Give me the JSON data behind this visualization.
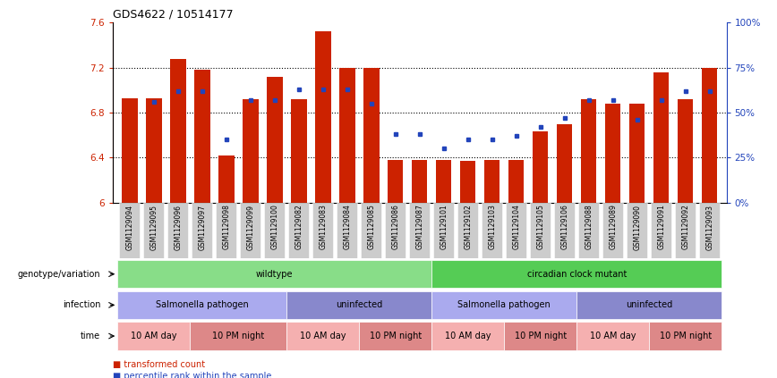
{
  "title": "GDS4622 / 10514177",
  "samples": [
    "GSM1129094",
    "GSM1129095",
    "GSM1129096",
    "GSM1129097",
    "GSM1129098",
    "GSM1129099",
    "GSM1129100",
    "GSM1129082",
    "GSM1129083",
    "GSM1129084",
    "GSM1129085",
    "GSM1129086",
    "GSM1129087",
    "GSM1129101",
    "GSM1129102",
    "GSM1129103",
    "GSM1129104",
    "GSM1129105",
    "GSM1129106",
    "GSM1129088",
    "GSM1129089",
    "GSM1129090",
    "GSM1129091",
    "GSM1129092",
    "GSM1129093"
  ],
  "bar_values": [
    6.93,
    6.93,
    7.28,
    7.18,
    6.42,
    6.92,
    7.12,
    6.92,
    7.52,
    7.2,
    7.2,
    6.38,
    6.38,
    6.38,
    6.37,
    6.38,
    6.38,
    6.63,
    6.7,
    6.92,
    6.88,
    6.88,
    7.16,
    6.92,
    7.2
  ],
  "dot_values": [
    null,
    56,
    62,
    62,
    35,
    57,
    57,
    63,
    63,
    63,
    55,
    38,
    38,
    30,
    35,
    35,
    37,
    42,
    47,
    57,
    57,
    46,
    57,
    62,
    62
  ],
  "ylim_left": [
    6.0,
    7.6
  ],
  "ylim_right": [
    0,
    100
  ],
  "yticks_left": [
    6.0,
    6.4,
    6.8,
    7.2,
    7.6
  ],
  "yticks_right": [
    0,
    25,
    50,
    75,
    100
  ],
  "ytick_labels_right": [
    "0%",
    "25%",
    "50%",
    "75%",
    "100%"
  ],
  "bar_color": "#cc2200",
  "dot_color": "#2244bb",
  "bar_bottom": 6.0,
  "grid_values": [
    6.4,
    6.8,
    7.2
  ],
  "row_genotype_label": "genotype/variation",
  "row_infection_label": "infection",
  "row_time_label": "time",
  "genotype_groups": [
    {
      "label": "wildtype",
      "start": 0,
      "end": 13,
      "color": "#88dd88"
    },
    {
      "label": "circadian clock mutant",
      "start": 13,
      "end": 25,
      "color": "#55cc55"
    }
  ],
  "infection_groups": [
    {
      "label": "Salmonella pathogen",
      "start": 0,
      "end": 7,
      "color": "#aaaaee"
    },
    {
      "label": "uninfected",
      "start": 7,
      "end": 13,
      "color": "#8888cc"
    },
    {
      "label": "Salmonella pathogen",
      "start": 13,
      "end": 19,
      "color": "#aaaaee"
    },
    {
      "label": "uninfected",
      "start": 19,
      "end": 25,
      "color": "#8888cc"
    }
  ],
  "time_groups": [
    {
      "label": "10 AM day",
      "start": 0,
      "end": 3,
      "color": "#f5b0b0"
    },
    {
      "label": "10 PM night",
      "start": 3,
      "end": 7,
      "color": "#dd8888"
    },
    {
      "label": "10 AM day",
      "start": 7,
      "end": 10,
      "color": "#f5b0b0"
    },
    {
      "label": "10 PM night",
      "start": 10,
      "end": 13,
      "color": "#dd8888"
    },
    {
      "label": "10 AM day",
      "start": 13,
      "end": 16,
      "color": "#f5b0b0"
    },
    {
      "label": "10 PM night",
      "start": 16,
      "end": 19,
      "color": "#dd8888"
    },
    {
      "label": "10 AM day",
      "start": 19,
      "end": 22,
      "color": "#f5b0b0"
    },
    {
      "label": "10 PM night",
      "start": 22,
      "end": 25,
      "color": "#dd8888"
    }
  ],
  "legend_bar_label": "transformed count",
  "legend_dot_label": "percentile rank within the sample",
  "xtick_bg_color": "#cccccc"
}
